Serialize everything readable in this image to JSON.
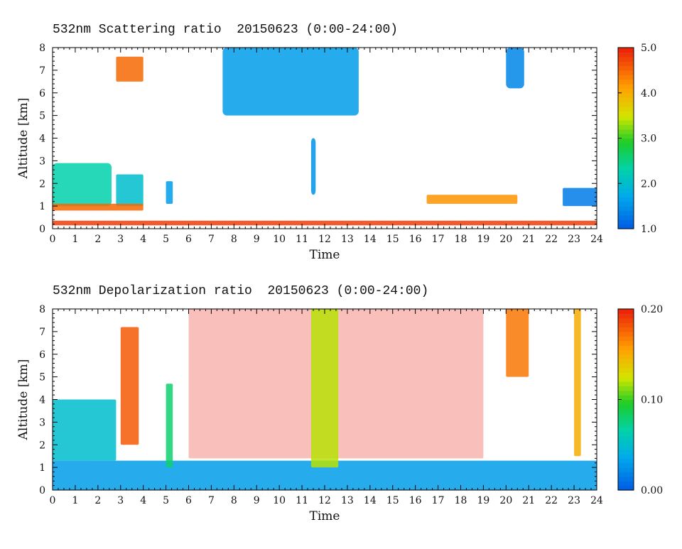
{
  "panels": [
    {
      "title": "532nm Scattering ratio  20150623 (0:00-24:00)",
      "xlabel": "Time",
      "ylabel": "Altitude [km]",
      "colorbar": {
        "min": 1.0,
        "max": 5.0,
        "ticks": [
          "1.0",
          "2.0",
          "3.0",
          "4.0",
          "5.0"
        ]
      }
    },
    {
      "title": "532nm Depolarization ratio  20150623 (0:00-24:00)",
      "xlabel": "Time",
      "ylabel": "Altitude [km]",
      "colorbar": {
        "min": 0.0,
        "max": 0.2,
        "ticks": [
          "0.00",
          "0.10",
          "0.20"
        ]
      }
    }
  ],
  "x_ticks": [
    "0",
    "1",
    "2",
    "3",
    "4",
    "5",
    "6",
    "7",
    "8",
    "9",
    "10",
    "11",
    "12",
    "13",
    "14",
    "15",
    "16",
    "17",
    "18",
    "19",
    "20",
    "21",
    "22",
    "23",
    "24"
  ],
  "y_ticks": [
    "0",
    "1",
    "2",
    "3",
    "4",
    "5",
    "6",
    "7",
    "8"
  ],
  "chart_data": [
    {
      "type": "heatmap",
      "title": "532nm Scattering ratio  20150623 (0:00-24:00)",
      "xlabel": "Time",
      "ylabel": "Altitude [km]",
      "xlim": [
        0,
        24
      ],
      "ylim": [
        0,
        8
      ],
      "clim": [
        1.0,
        5.0
      ],
      "features": [
        {
          "t": [
            0,
            2.6
          ],
          "alt": [
            1.0,
            2.9
          ],
          "value": 2.3
        },
        {
          "t": [
            2.8,
            4.0
          ],
          "alt": [
            1.0,
            2.4
          ],
          "value": 2.0
        },
        {
          "t": [
            5.0,
            5.3
          ],
          "alt": [
            1.1,
            2.1
          ],
          "value": 1.6
        },
        {
          "t": [
            0,
            24
          ],
          "alt": [
            0.15,
            0.35
          ],
          "value": 4.8
        },
        {
          "t": [
            0,
            4
          ],
          "alt": [
            0.8,
            1.1
          ],
          "value": 4.5
        },
        {
          "t": [
            16.5,
            20.5
          ],
          "alt": [
            1.1,
            1.5
          ],
          "value": 4.2
        },
        {
          "t": [
            7.5,
            13.5
          ],
          "alt": [
            5.0,
            8.0
          ],
          "value": 1.6
        },
        {
          "t": [
            11.4,
            11.6
          ],
          "alt": [
            1.5,
            4.0
          ],
          "value": 1.5
        },
        {
          "t": [
            20.0,
            20.8
          ],
          "alt": [
            6.2,
            8.0
          ],
          "value": 1.4
        },
        {
          "t": [
            22.5,
            24
          ],
          "alt": [
            1.0,
            1.8
          ],
          "value": 1.3
        },
        {
          "t": [
            2.8,
            4.0
          ],
          "alt": [
            6.5,
            7.6
          ],
          "value": 4.5
        }
      ]
    },
    {
      "type": "heatmap",
      "title": "532nm Depolarization ratio  20150623 (0:00-24:00)",
      "xlabel": "Time",
      "ylabel": "Altitude [km]",
      "xlim": [
        0,
        24
      ],
      "ylim": [
        0,
        8
      ],
      "clim": [
        0.0,
        0.2
      ],
      "features": [
        {
          "t": [
            0,
            24
          ],
          "alt": [
            0,
            1.3
          ],
          "value": 0.03
        },
        {
          "t": [
            0,
            2.8
          ],
          "alt": [
            1.3,
            4.0
          ],
          "value": 0.05
        },
        {
          "t": [
            3.0,
            3.8
          ],
          "alt": [
            2.0,
            7.2
          ],
          "value": 0.18
        },
        {
          "t": [
            5.0,
            5.3
          ],
          "alt": [
            1.0,
            4.7
          ],
          "value": 0.08
        },
        {
          "t": [
            6,
            19
          ],
          "alt": [
            1.4,
            8.0
          ],
          "value": 0.2
        },
        {
          "t": [
            11.4,
            12.6
          ],
          "alt": [
            1.0,
            8.0
          ],
          "value": 0.12
        },
        {
          "t": [
            20.0,
            21.0
          ],
          "alt": [
            5.0,
            8.0
          ],
          "value": 0.17
        },
        {
          "t": [
            23.0,
            23.3
          ],
          "alt": [
            1.5,
            8.0
          ],
          "value": 0.15
        }
      ]
    }
  ]
}
